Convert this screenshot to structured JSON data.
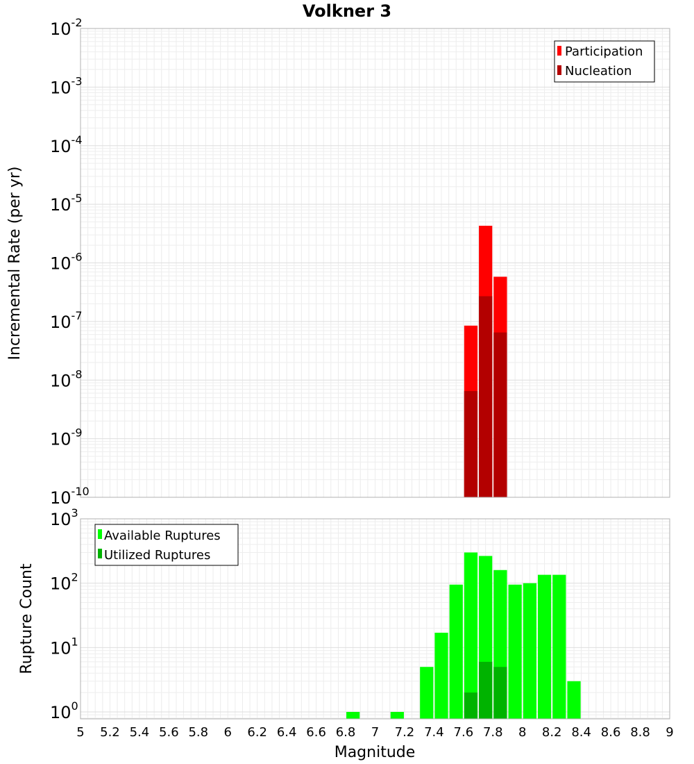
{
  "chart_data": [
    {
      "type": "bar",
      "title": "Volkner 3",
      "ylabel": "Incremental Rate (per yr)",
      "xlim": [
        5,
        9
      ],
      "ylim": [
        1e-10,
        0.01
      ],
      "yscale": "log",
      "grid": true,
      "legend_position": "top-right",
      "bar_width": 0.1,
      "y_ticks": [
        {
          "base": "10",
          "exp": "-10"
        },
        {
          "base": "10",
          "exp": "-9"
        },
        {
          "base": "10",
          "exp": "-8"
        },
        {
          "base": "10",
          "exp": "-7"
        },
        {
          "base": "10",
          "exp": "-6"
        },
        {
          "base": "10",
          "exp": "-5"
        },
        {
          "base": "10",
          "exp": "-4"
        },
        {
          "base": "10",
          "exp": "-3"
        },
        {
          "base": "10",
          "exp": "-2"
        }
      ],
      "series": [
        {
          "name": "Participation",
          "color": "#ff0000",
          "x": [
            7.65,
            7.75,
            7.85
          ],
          "values": [
            8.5e-08,
            4.3e-06,
            5.8e-07
          ]
        },
        {
          "name": "Nucleation",
          "color": "#b30000",
          "x": [
            7.65,
            7.75,
            7.85
          ],
          "values": [
            6.5e-09,
            2.7e-07,
            6.5e-08
          ]
        }
      ]
    },
    {
      "type": "bar",
      "xlabel": "Magnitude",
      "ylabel": "Rupture Count",
      "xlim": [
        5,
        9
      ],
      "ylim": [
        0.78,
        1000
      ],
      "yscale": "log",
      "grid": true,
      "legend_position": "top-left",
      "bar_width": 0.1,
      "x_ticks": [
        "5",
        "5.2",
        "5.4",
        "5.6",
        "5.8",
        "6",
        "6.2",
        "6.4",
        "6.6",
        "6.8",
        "7",
        "7.2",
        "7.4",
        "7.6",
        "7.8",
        "8",
        "8.2",
        "8.4",
        "8.6",
        "8.8",
        "9"
      ],
      "y_ticks": [
        {
          "base": "10",
          "exp": "0"
        },
        {
          "base": "10",
          "exp": "1"
        },
        {
          "base": "10",
          "exp": "2"
        },
        {
          "base": "10",
          "exp": "3"
        }
      ],
      "series": [
        {
          "name": "Available Ruptures",
          "color": "#00ff00",
          "x": [
            6.85,
            7.15,
            7.35,
            7.45,
            7.55,
            7.65,
            7.75,
            7.85,
            7.95,
            8.05,
            8.15,
            8.25,
            8.35
          ],
          "values": [
            1,
            1,
            5,
            17,
            95,
            300,
            265,
            160,
            95,
            100,
            135,
            135,
            3
          ]
        },
        {
          "name": "Utilized Ruptures",
          "color": "#00b300",
          "x": [
            7.65,
            7.75,
            7.85
          ],
          "values": [
            2,
            6,
            5
          ]
        }
      ]
    }
  ]
}
